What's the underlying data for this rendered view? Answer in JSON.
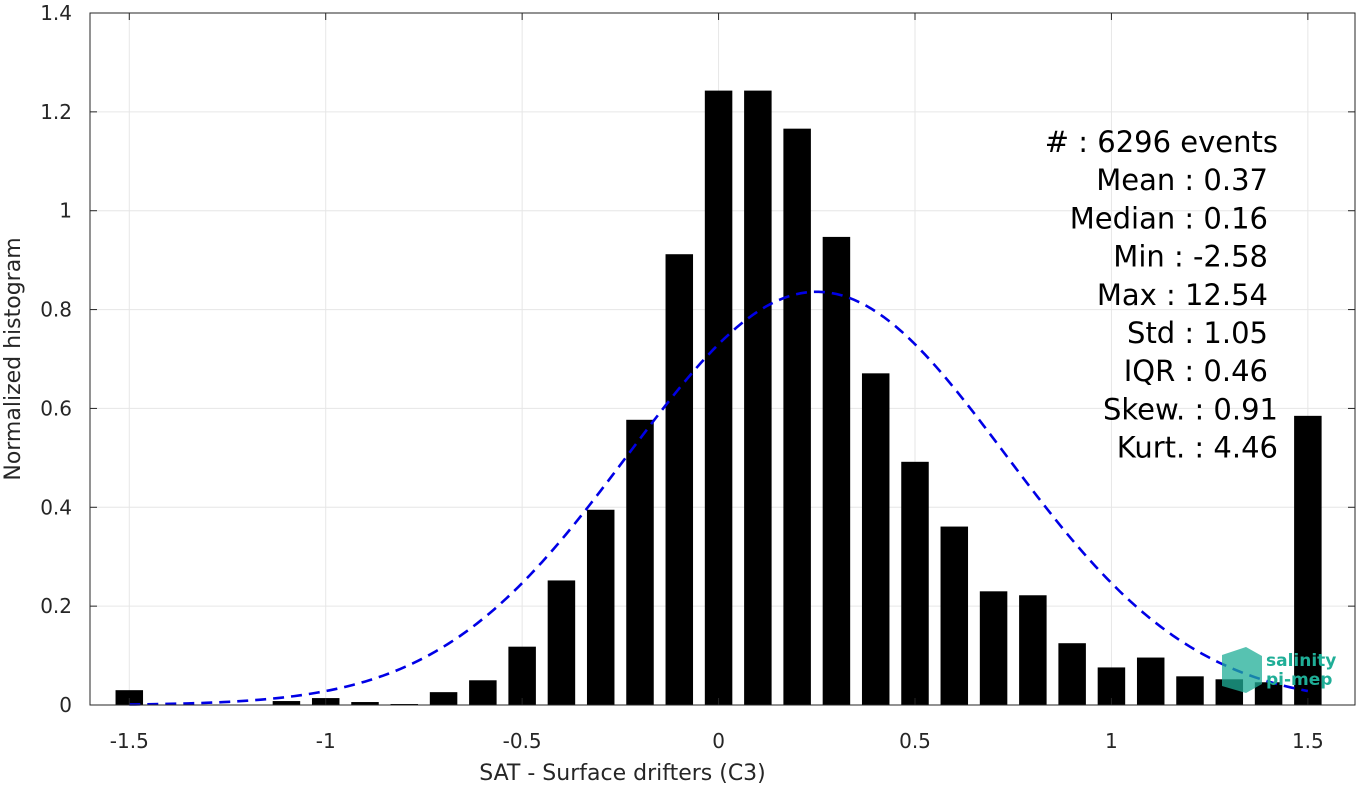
{
  "chart_data": {
    "type": "bar",
    "xlabel": "SAT - Surface drifters (C3)",
    "ylabel": "Normalized histogram",
    "xlim": [
      -1.6,
      1.62
    ],
    "ylim": [
      0,
      1.4
    ],
    "xticks": [
      -1.5,
      -1,
      -0.5,
      0,
      0.5,
      1,
      1.5
    ],
    "xtick_labels": [
      "-1.5",
      "-1",
      "-0.5",
      "0",
      "0.5",
      "1",
      "1.5"
    ],
    "yticks": [
      0,
      0.2,
      0.4,
      0.6,
      0.8,
      1,
      1.2,
      1.4
    ],
    "ytick_labels": [
      "0",
      "0.2",
      "0.4",
      "0.6",
      "0.8",
      "1",
      "1.2",
      "1.4"
    ],
    "grid": true,
    "bar_width": 0.07,
    "bar_color": "#000000",
    "bars": {
      "x": [
        -1.5,
        -1.4,
        -1.3,
        -1.2,
        -1.1,
        -1.0,
        -0.9,
        -0.8,
        -0.7,
        -0.6,
        -0.5,
        -0.4,
        -0.3,
        -0.2,
        -0.1,
        0.0,
        0.1,
        0.2,
        0.3,
        0.4,
        0.5,
        0.6,
        0.7,
        0.8,
        0.9,
        1.0,
        1.1,
        1.2,
        1.3,
        1.4,
        1.5
      ],
      "y": [
        0.03,
        0,
        0,
        0,
        0.008,
        0.014,
        0.006,
        0.002,
        0.026,
        0.05,
        0.118,
        0.252,
        0.395,
        0.577,
        0.912,
        1.243,
        1.243,
        1.166,
        0.947,
        0.671,
        0.492,
        0.361,
        0.23,
        0.222,
        0.125,
        0.076,
        0.096,
        0.058,
        0.052,
        0.046,
        0.585
      ]
    },
    "fit_curve": {
      "style": "dashed",
      "color": "#0000e6",
      "x_start": -1.5,
      "x_end": 1.5,
      "mean": 0.25,
      "peak": 0.836,
      "sigma": 0.48
    },
    "annotations": [
      {
        "label": "#  : 6296 events"
      },
      {
        "label": "Mean : 0.37"
      },
      {
        "label": "Median : 0.16"
      },
      {
        "label": "Min : -2.58"
      },
      {
        "label": "Max : 12.54"
      },
      {
        "label": "Std : 1.05"
      },
      {
        "label": "IQR : 0.46"
      },
      {
        "label": "Skew. : 0.91"
      },
      {
        "label": "Kurt. : 4.46"
      }
    ],
    "logo": {
      "line1": "salinity",
      "line2": "pi-mep",
      "color": "#1fae97"
    }
  }
}
